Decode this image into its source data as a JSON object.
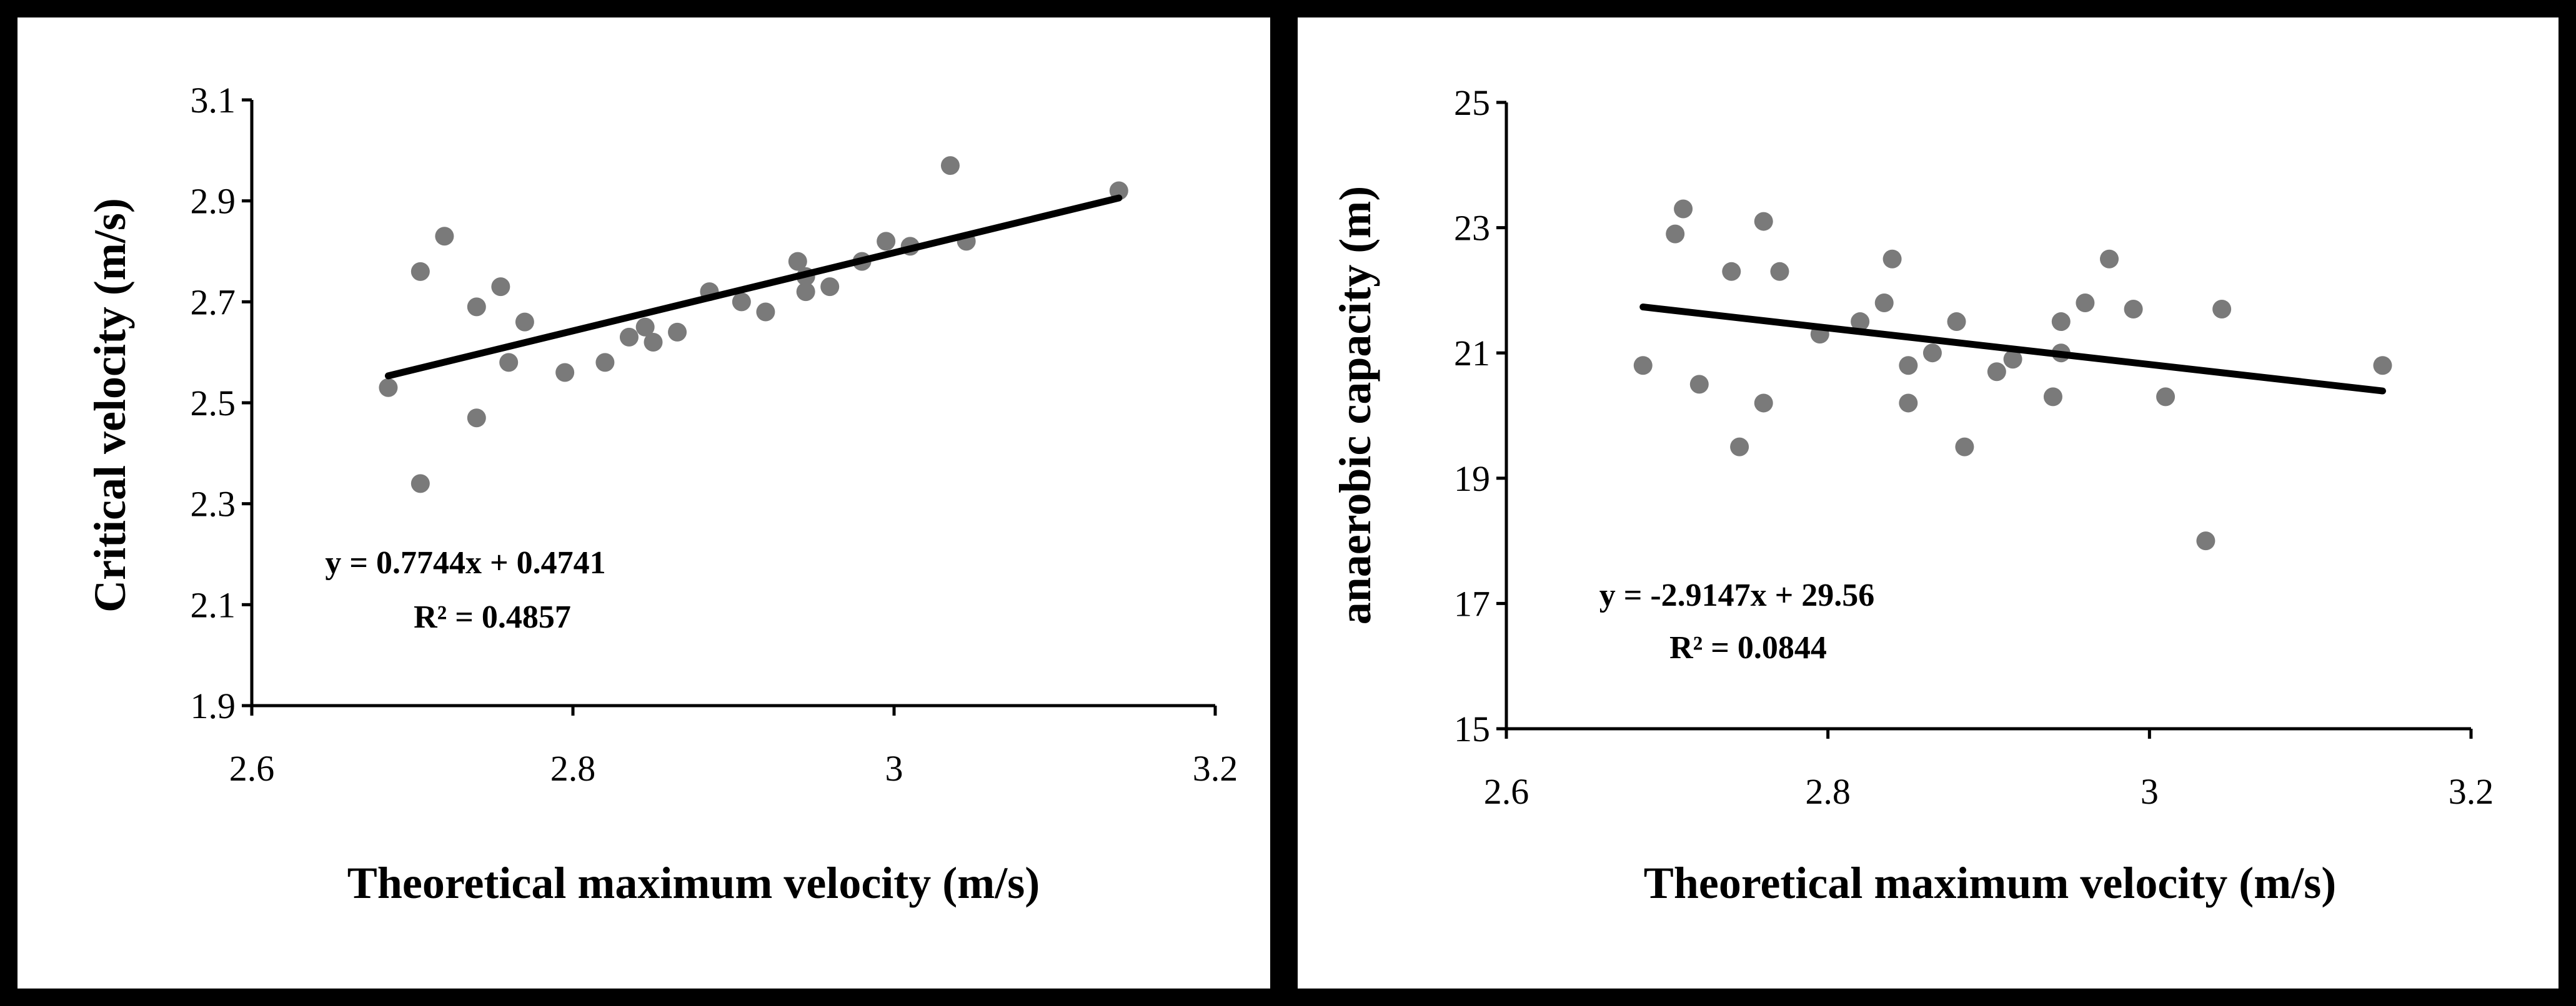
{
  "chart_data": [
    {
      "type": "scatter",
      "xlabel": "Theoretical maximum velocity (m/s)",
      "ylabel": "Critical velocity (m/s)",
      "xlim": [
        2.6,
        3.2
      ],
      "ylim": [
        1.9,
        3.1
      ],
      "xticks": [
        2.6,
        2.8,
        3.0,
        3.2
      ],
      "xtick_labels": [
        "2.6",
        "2.8",
        "3",
        "3.2"
      ],
      "yticks": [
        1.9,
        2.1,
        2.3,
        2.5,
        2.7,
        2.9,
        3.1
      ],
      "ytick_labels": [
        "1.9",
        "2.1",
        "2.3",
        "2.5",
        "2.7",
        "2.9",
        "3.1"
      ],
      "series": [
        {
          "name": "data",
          "points": [
            [
              2.685,
              2.53
            ],
            [
              2.705,
              2.34
            ],
            [
              2.705,
              2.76
            ],
            [
              2.72,
              2.83
            ],
            [
              2.74,
              2.69
            ],
            [
              2.74,
              2.47
            ],
            [
              2.755,
              2.73
            ],
            [
              2.76,
              2.58
            ],
            [
              2.77,
              2.66
            ],
            [
              2.795,
              2.56
            ],
            [
              2.82,
              2.58
            ],
            [
              2.835,
              2.63
            ],
            [
              2.845,
              2.65
            ],
            [
              2.85,
              2.62
            ],
            [
              2.865,
              2.64
            ],
            [
              2.885,
              2.72
            ],
            [
              2.905,
              2.7
            ],
            [
              2.92,
              2.68
            ],
            [
              2.94,
              2.78
            ],
            [
              2.945,
              2.75
            ],
            [
              2.945,
              2.72
            ],
            [
              2.96,
              2.73
            ],
            [
              2.98,
              2.78
            ],
            [
              2.995,
              2.82
            ],
            [
              3.01,
              2.81
            ],
            [
              3.035,
              2.97
            ],
            [
              3.045,
              2.82
            ],
            [
              3.14,
              2.92
            ]
          ]
        }
      ],
      "trendline": {
        "slope": 0.7744,
        "intercept": 0.4741,
        "x_range": [
          2.685,
          3.14
        ]
      },
      "annotations": [
        "y = 0.7744x + 0.4741",
        "R² = 0.4857"
      ]
    },
    {
      "type": "scatter",
      "xlabel": "Theoretical maximum velocity (m/s)",
      "ylabel": "anaerobic capacity (m)",
      "xlim": [
        2.6,
        3.2
      ],
      "ylim": [
        15,
        25
      ],
      "xticks": [
        2.6,
        2.8,
        3.0,
        3.2
      ],
      "xtick_labels": [
        "2.6",
        "2.8",
        "3",
        "3.2"
      ],
      "yticks": [
        15,
        17,
        19,
        21,
        23,
        25
      ],
      "ytick_labels": [
        "15",
        "17",
        "19",
        "21",
        "23",
        "25"
      ],
      "series": [
        {
          "name": "data",
          "points": [
            [
              2.685,
              20.8
            ],
            [
              2.705,
              22.9
            ],
            [
              2.71,
              23.3
            ],
            [
              2.72,
              20.5
            ],
            [
              2.74,
              22.3
            ],
            [
              2.745,
              19.5
            ],
            [
              2.76,
              23.1
            ],
            [
              2.76,
              20.2
            ],
            [
              2.77,
              22.3
            ],
            [
              2.795,
              21.3
            ],
            [
              2.82,
              21.5
            ],
            [
              2.835,
              21.8
            ],
            [
              2.84,
              22.5
            ],
            [
              2.85,
              20.8
            ],
            [
              2.85,
              20.2
            ],
            [
              2.865,
              21.0
            ],
            [
              2.88,
              21.5
            ],
            [
              2.885,
              19.5
            ],
            [
              2.905,
              20.7
            ],
            [
              2.915,
              20.9
            ],
            [
              2.94,
              20.3
            ],
            [
              2.945,
              21.0
            ],
            [
              2.945,
              21.5
            ],
            [
              2.96,
              21.8
            ],
            [
              2.975,
              22.5
            ],
            [
              2.99,
              21.7
            ],
            [
              3.01,
              20.3
            ],
            [
              3.035,
              18.0
            ],
            [
              3.045,
              21.7
            ],
            [
              3.145,
              20.8
            ]
          ]
        }
      ],
      "trendline": {
        "slope": -2.9147,
        "intercept": 29.56,
        "x_range": [
          2.685,
          3.145
        ]
      },
      "annotations": [
        "y = -2.9147x + 29.56",
        "R² = 0.0844"
      ]
    }
  ]
}
